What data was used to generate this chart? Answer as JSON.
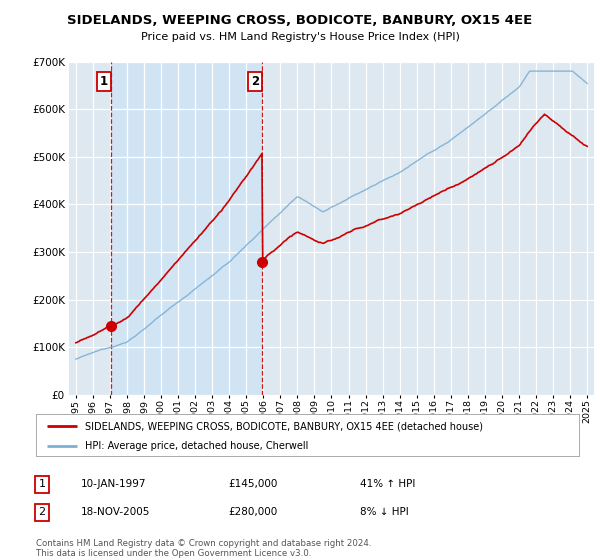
{
  "title": "SIDELANDS, WEEPING CROSS, BODICOTE, BANBURY, OX15 4EE",
  "subtitle": "Price paid vs. HM Land Registry's House Price Index (HPI)",
  "ylim": [
    0,
    700000
  ],
  "yticks": [
    0,
    100000,
    200000,
    300000,
    400000,
    500000,
    600000,
    700000
  ],
  "sale1_year": 1997.04,
  "sale1_price": 145000,
  "sale1_label": "1",
  "sale2_year": 2005.92,
  "sale2_price": 280000,
  "sale2_label": "2",
  "red_line_color": "#cc0000",
  "blue_line_color": "#7eb0d4",
  "shade_color": "#d0e4f5",
  "dashed_line_color": "#cc0000",
  "plot_bg_color": "#dde8f0",
  "legend_label_red": "SIDELANDS, WEEPING CROSS, BODICOTE, BANBURY, OX15 4EE (detached house)",
  "legend_label_blue": "HPI: Average price, detached house, Cherwell",
  "footer": "Contains HM Land Registry data © Crown copyright and database right 2024.\nThis data is licensed under the Open Government Licence v3.0.",
  "sale1_date": "10-JAN-1997",
  "sale1_amount": "£145,000",
  "sale1_hpi": "41% ↑ HPI",
  "sale2_date": "18-NOV-2005",
  "sale2_amount": "£280,000",
  "sale2_hpi": "8% ↓ HPI"
}
